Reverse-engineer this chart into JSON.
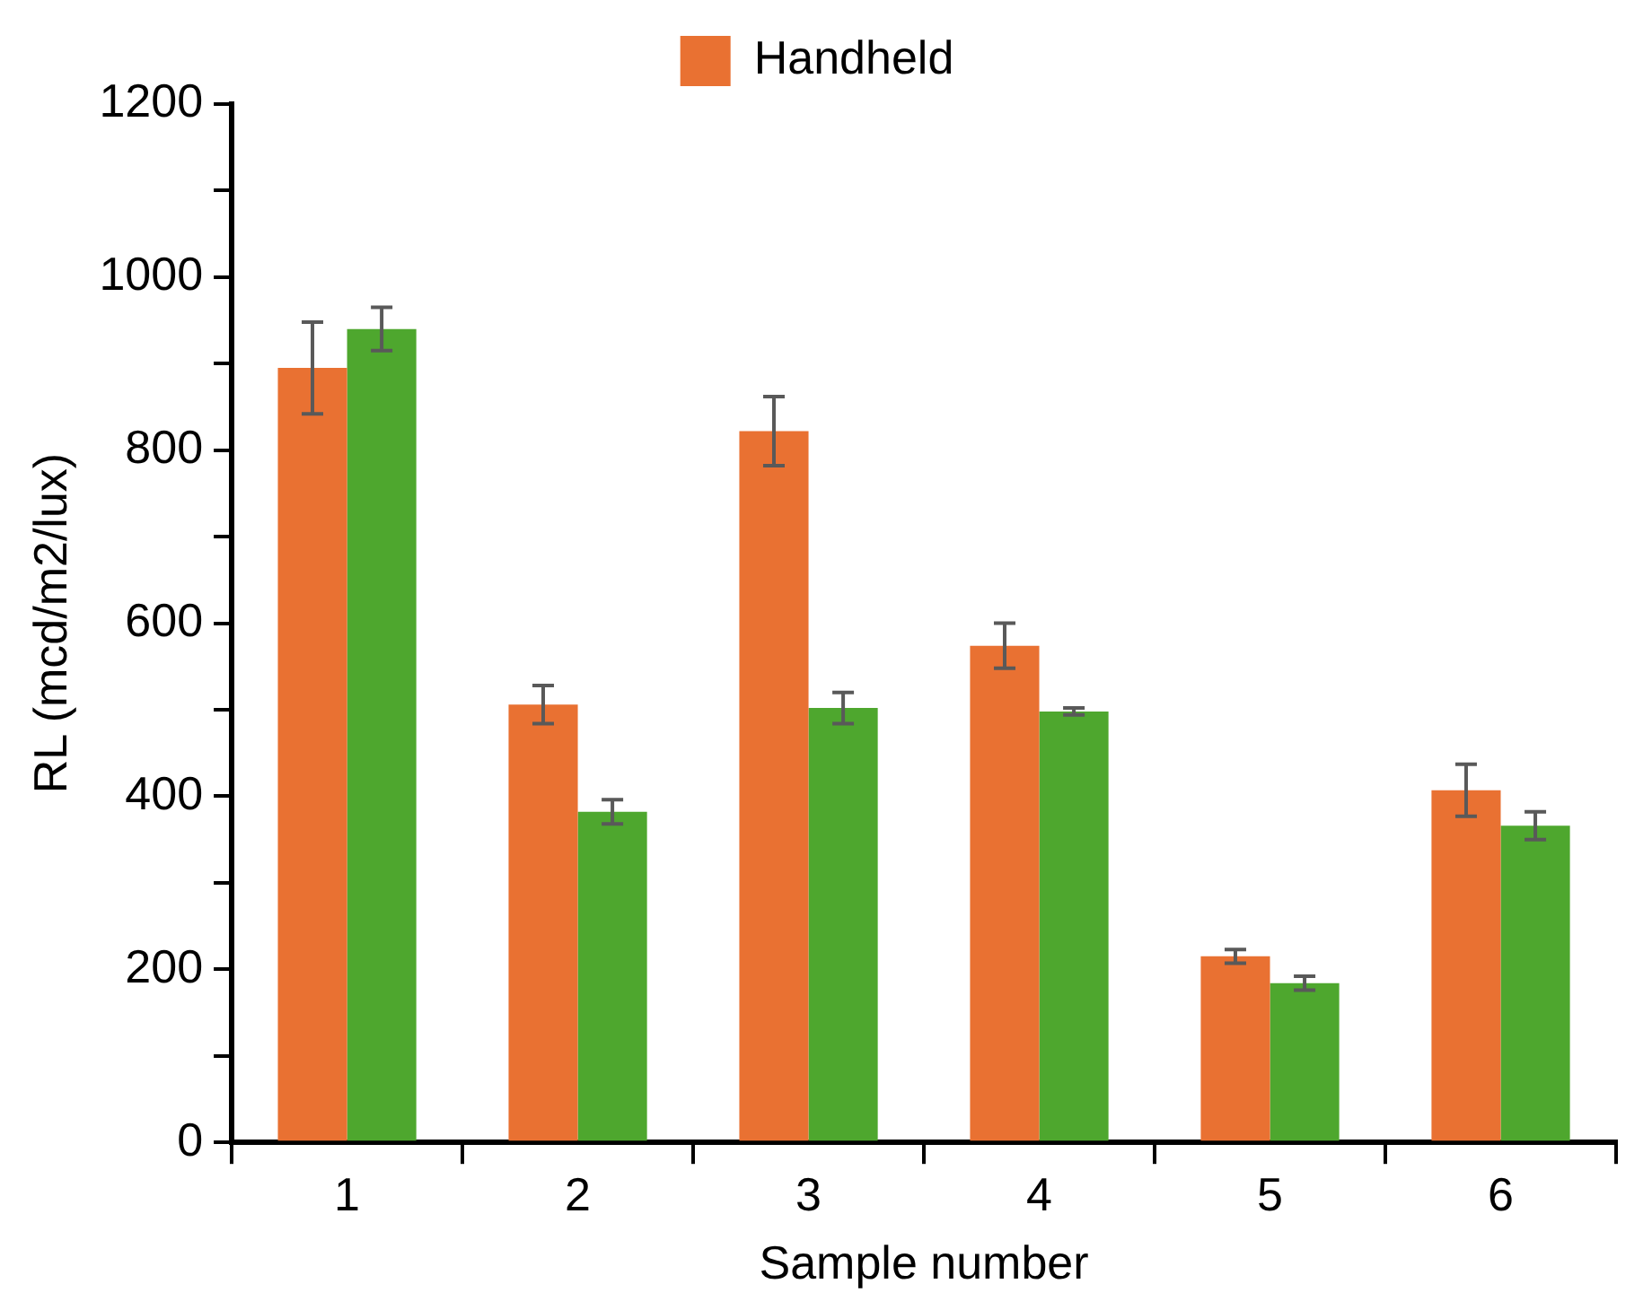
{
  "chart_data": {
    "type": "bar",
    "xlabel": "Sample number",
    "ylabel": "RL (mcd/m2/lux)",
    "categories": [
      "1",
      "2",
      "3",
      "4",
      "5",
      "6"
    ],
    "series": [
      {
        "name": "Handheld",
        "color": "#e97132",
        "values": [
          895,
          506,
          822,
          574,
          215,
          407
        ],
        "errors": [
          53,
          22,
          40,
          26,
          8,
          30
        ]
      },
      {
        "color": "#4ea72e",
        "values": [
          940,
          382,
          502,
          498,
          184,
          366
        ],
        "errors": [
          25,
          14,
          18,
          4,
          8,
          16
        ]
      }
    ],
    "ylim": [
      0,
      1200
    ],
    "yticks": [
      0,
      {
        "value": 100,
        "label": null
      },
      200,
      {
        "value": 300,
        "label": null
      },
      400,
      {
        "value": 500,
        "label": null
      },
      600,
      {
        "value": 700,
        "label": null
      },
      800,
      {
        "value": 900,
        "label": null
      },
      1000,
      {
        "value": 1100,
        "label": null
      },
      1200
    ],
    "grid": false,
    "legend": "top"
  }
}
